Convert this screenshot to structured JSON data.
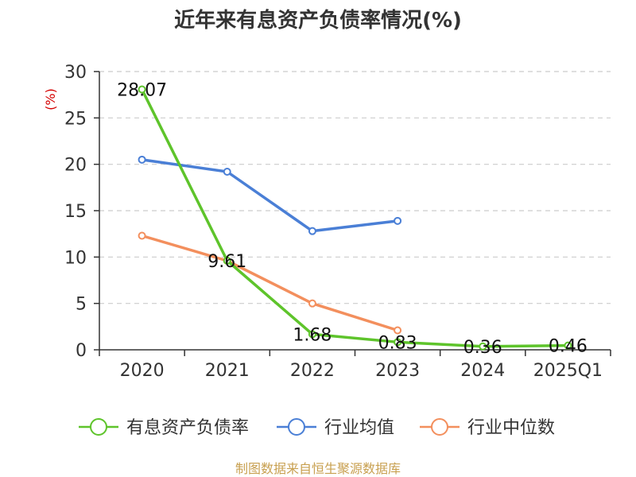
{
  "chart_data": {
    "type": "line",
    "title": "近年来有息资产负债率情况(%)",
    "ylabel": "(%)",
    "xlabel": "",
    "categories": [
      "2020",
      "2021",
      "2022",
      "2023",
      "2024",
      "2025Q1"
    ],
    "yticks": [
      "0",
      "5",
      "10",
      "15",
      "20",
      "25",
      "30"
    ],
    "ylim": [
      0,
      30
    ],
    "grid": true,
    "legend_position": "bottom",
    "series": [
      {
        "name": "有息资产负债率",
        "color": "#5ec42b",
        "values": [
          28.07,
          9.61,
          1.68,
          0.83,
          0.36,
          0.46
        ],
        "labels": [
          "28.07",
          "9.61",
          "1.68",
          "0.83",
          "0.36",
          "0.46"
        ]
      },
      {
        "name": "行业均值",
        "color": "#4a7fd6",
        "values": [
          20.5,
          19.2,
          12.8,
          13.9,
          null,
          null
        ]
      },
      {
        "name": "行业中位数",
        "color": "#f38f5d",
        "values": [
          12.3,
          9.6,
          5.0,
          2.1,
          null,
          null
        ]
      }
    ]
  },
  "footer": "制图数据来自恒生聚源数据库"
}
